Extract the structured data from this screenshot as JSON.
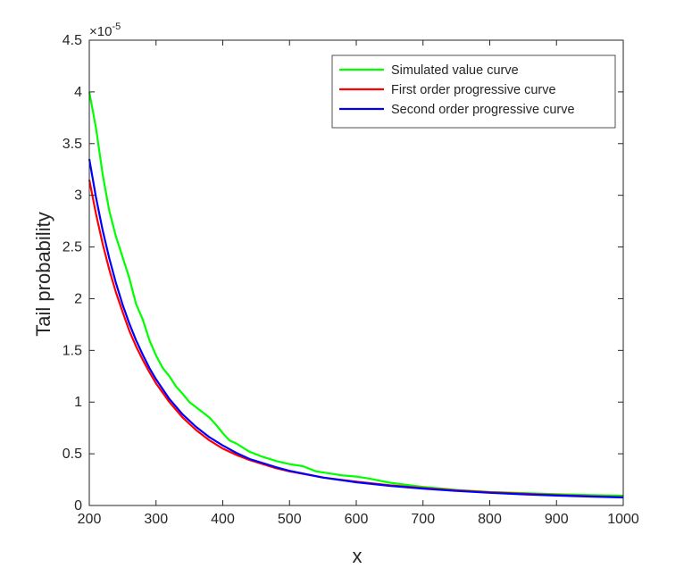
{
  "chart_data": {
    "type": "line",
    "xlabel": "x",
    "ylabel": "Tail probability",
    "y_exponent_label": "×10",
    "y_exponent_power": "-5",
    "xlim": [
      200,
      1000
    ],
    "ylim": [
      0,
      4.5
    ],
    "x_ticks": [
      200,
      300,
      400,
      500,
      600,
      700,
      800,
      900,
      1000
    ],
    "x_tick_labels": [
      "200",
      "300",
      "400",
      "500",
      "600",
      "700",
      "800",
      "900",
      "1000"
    ],
    "y_ticks": [
      0,
      0.5,
      1,
      1.5,
      2,
      2.5,
      3,
      3.5,
      4,
      4.5
    ],
    "y_tick_labels": [
      "0",
      "0.5",
      "1",
      "1.5",
      "2",
      "2.5",
      "3",
      "3.5",
      "4",
      "4.5"
    ],
    "grid": false,
    "legend_position": "top-right",
    "series": [
      {
        "name": "Simulated value curve",
        "color": "#00ff00",
        "x": [
          200,
          210,
          220,
          230,
          240,
          250,
          260,
          270,
          280,
          290,
          300,
          310,
          320,
          330,
          340,
          350,
          360,
          370,
          380,
          390,
          400,
          410,
          420,
          440,
          460,
          480,
          500,
          520,
          540,
          560,
          580,
          600,
          620,
          650,
          700,
          750,
          800,
          850,
          900,
          950,
          1000
        ],
        "values": [
          4.0,
          3.65,
          3.2,
          2.85,
          2.6,
          2.4,
          2.2,
          1.95,
          1.8,
          1.6,
          1.45,
          1.33,
          1.25,
          1.15,
          1.08,
          1.0,
          0.95,
          0.9,
          0.85,
          0.78,
          0.7,
          0.63,
          0.6,
          0.52,
          0.47,
          0.43,
          0.4,
          0.38,
          0.33,
          0.31,
          0.29,
          0.28,
          0.26,
          0.22,
          0.18,
          0.15,
          0.13,
          0.12,
          0.11,
          0.1,
          0.095
        ]
      },
      {
        "name": "First order progressive curve",
        "color": "#ff0000",
        "x": [
          200,
          210,
          220,
          230,
          240,
          250,
          260,
          270,
          280,
          290,
          300,
          320,
          340,
          360,
          380,
          400,
          420,
          440,
          460,
          480,
          500,
          550,
          600,
          650,
          700,
          750,
          800,
          850,
          900,
          950,
          1000
        ],
        "values": [
          3.15,
          2.82,
          2.53,
          2.28,
          2.06,
          1.87,
          1.69,
          1.54,
          1.41,
          1.29,
          1.18,
          1.0,
          0.85,
          0.73,
          0.63,
          0.55,
          0.49,
          0.44,
          0.4,
          0.36,
          0.33,
          0.27,
          0.23,
          0.195,
          0.168,
          0.146,
          0.128,
          0.113,
          0.101,
          0.09,
          0.08
        ]
      },
      {
        "name": "Second order progressive curve",
        "color": "#0000ff",
        "x": [
          200,
          210,
          220,
          230,
          240,
          250,
          260,
          270,
          280,
          290,
          300,
          320,
          340,
          360,
          380,
          400,
          420,
          440,
          460,
          480,
          500,
          550,
          600,
          650,
          700,
          750,
          800,
          850,
          900,
          950,
          1000
        ],
        "values": [
          3.35,
          2.98,
          2.66,
          2.39,
          2.15,
          1.94,
          1.76,
          1.6,
          1.46,
          1.33,
          1.22,
          1.03,
          0.88,
          0.76,
          0.66,
          0.58,
          0.51,
          0.45,
          0.41,
          0.37,
          0.335,
          0.27,
          0.225,
          0.19,
          0.163,
          0.141,
          0.123,
          0.108,
          0.096,
          0.086,
          0.078
        ]
      }
    ]
  }
}
